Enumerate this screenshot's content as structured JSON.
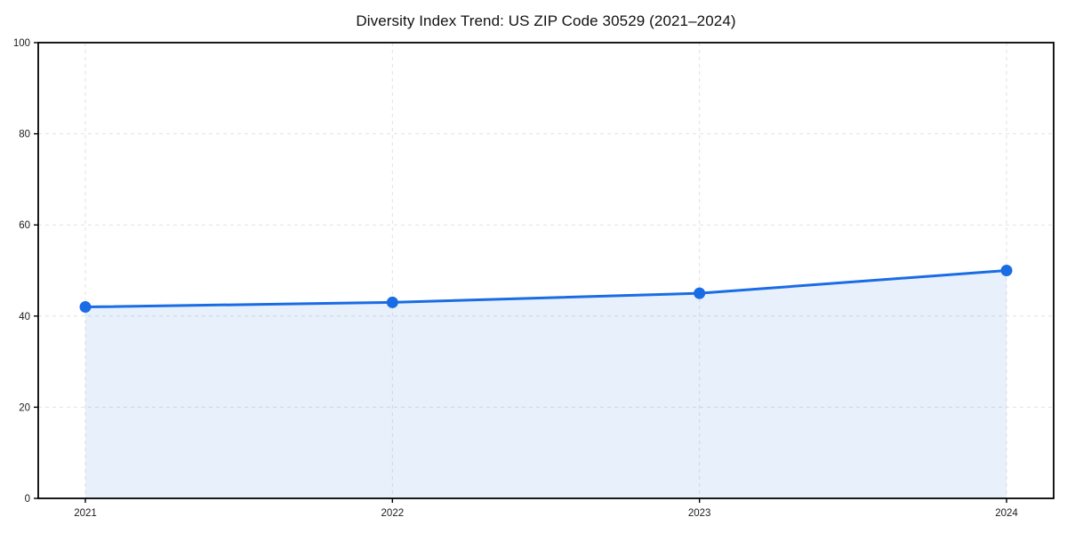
{
  "chart_data": {
    "type": "area",
    "title": "Diversity Index Trend: US ZIP Code 30529 (2021–2024)",
    "x": [
      2021,
      2022,
      2023,
      2024
    ],
    "values": [
      42,
      43,
      45,
      50
    ],
    "xtick_labels": [
      "2021",
      "2022",
      "2023",
      "2024"
    ],
    "yticks": [
      0,
      20,
      40,
      60,
      80,
      100
    ],
    "ylim": [
      0,
      100
    ],
    "xlabel": "",
    "ylabel": "",
    "grid": true,
    "grid_style": "dashed",
    "legend": false,
    "colors": {
      "line": "#1a6ce4",
      "marker": "#1a6ce4",
      "fill": "rgba(26,108,228,0.10)",
      "grid": "#e2e2e2",
      "spine": "#000000",
      "tick_text": "#1a1a1a",
      "background": "#ffffff"
    }
  }
}
